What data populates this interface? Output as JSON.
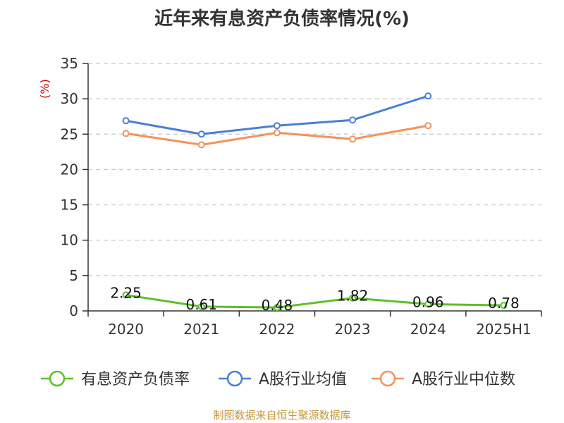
{
  "chart_data": {
    "type": "line",
    "title": "近年来有息资产负债率情况(%)",
    "ylabel": "(%)",
    "xlabel": "",
    "categories": [
      "2020",
      "2021",
      "2022",
      "2023",
      "2024",
      "2025H1"
    ],
    "ylim": [
      0,
      35
    ],
    "yticks": [
      "0",
      "5",
      "10",
      "15",
      "20",
      "25",
      "30",
      "35"
    ],
    "grid": true,
    "legend_position": "bottom",
    "series": [
      {
        "name": "有息资产负债率",
        "color": "#5dbf2a",
        "values": [
          2.25,
          0.61,
          0.48,
          1.82,
          0.96,
          0.78
        ],
        "labels": [
          "2.25",
          "0.61",
          "0.48",
          "1.82",
          "0.96",
          "0.78"
        ]
      },
      {
        "name": "A股行业均值",
        "color": "#4a7fd6",
        "values": [
          26.9,
          25.0,
          26.2,
          27.0,
          30.4,
          null
        ]
      },
      {
        "name": "A股行业中位数",
        "color": "#f4925c",
        "values": [
          25.1,
          23.5,
          25.2,
          24.3,
          26.2,
          null
        ]
      }
    ]
  },
  "source": "制图数据来自恒生聚源数据库"
}
